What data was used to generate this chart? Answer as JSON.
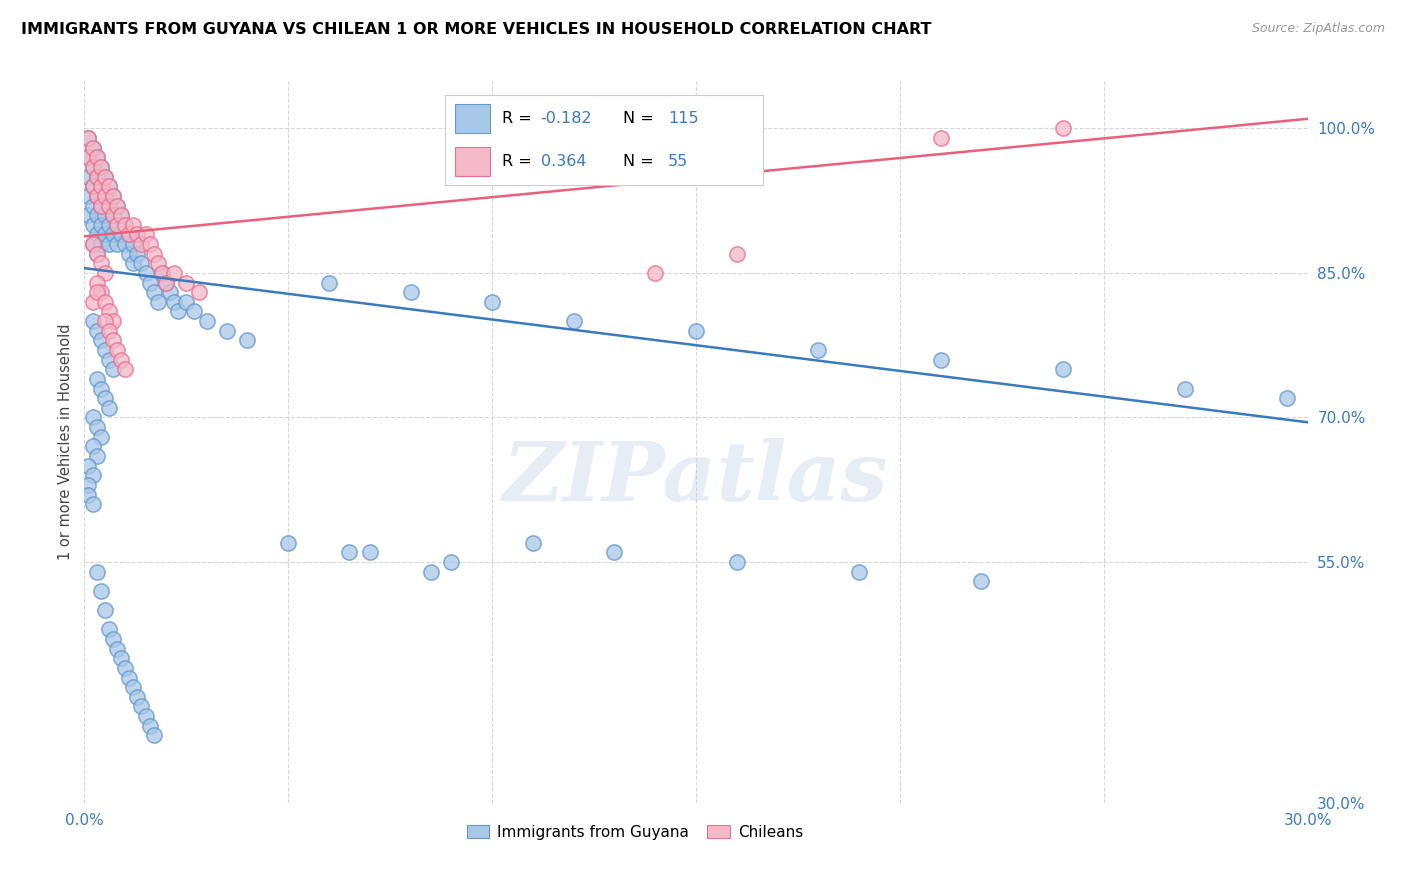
{
  "title": "IMMIGRANTS FROM GUYANA VS CHILEAN 1 OR MORE VEHICLES IN HOUSEHOLD CORRELATION CHART",
  "source": "Source: ZipAtlas.com",
  "ylabel": "1 or more Vehicles in Household",
  "xlim": [
    0.0,
    0.3
  ],
  "ylim": [
    0.3,
    1.05
  ],
  "xticks": [
    0.0,
    0.05,
    0.1,
    0.15,
    0.2,
    0.25,
    0.3
  ],
  "xtick_labels": [
    "0.0%",
    "",
    "",
    "",
    "",
    "",
    "30.0%"
  ],
  "yticks": [
    0.3,
    0.55,
    0.7,
    0.85,
    1.0
  ],
  "ytick_labels": [
    "30.0%",
    "55.0%",
    "70.0%",
    "85.0%",
    "100.0%"
  ],
  "blue_color": "#a8c8e8",
  "blue_edge_color": "#6699cc",
  "pink_color": "#f4b8c8",
  "pink_edge_color": "#e87090",
  "blue_line_color": "#3a7abf",
  "pink_line_color": "#e8607a",
  "watermark": "ZIPatlas",
  "legend_R_blue": "-0.182",
  "legend_N_blue": "115",
  "legend_R_pink": "0.364",
  "legend_N_pink": "55",
  "blue_line_x0": 0.0,
  "blue_line_x1": 0.3,
  "blue_line_y0": 0.855,
  "blue_line_y1": 0.695,
  "pink_line_x0": 0.0,
  "pink_line_x1": 0.3,
  "pink_line_y0": 0.888,
  "pink_line_y1": 1.01,
  "blue_scatter_x": [
    0.001,
    0.001,
    0.001,
    0.001,
    0.001,
    0.002,
    0.002,
    0.002,
    0.002,
    0.002,
    0.002,
    0.003,
    0.003,
    0.003,
    0.003,
    0.003,
    0.003,
    0.004,
    0.004,
    0.004,
    0.004,
    0.004,
    0.005,
    0.005,
    0.005,
    0.005,
    0.006,
    0.006,
    0.006,
    0.006,
    0.007,
    0.007,
    0.007,
    0.008,
    0.008,
    0.008,
    0.009,
    0.009,
    0.01,
    0.01,
    0.011,
    0.011,
    0.012,
    0.012,
    0.013,
    0.014,
    0.015,
    0.016,
    0.017,
    0.018,
    0.019,
    0.02,
    0.021,
    0.022,
    0.023,
    0.025,
    0.027,
    0.03,
    0.035,
    0.04,
    0.002,
    0.003,
    0.004,
    0.005,
    0.006,
    0.007,
    0.003,
    0.004,
    0.005,
    0.006,
    0.002,
    0.003,
    0.004,
    0.002,
    0.003,
    0.001,
    0.002,
    0.001,
    0.001,
    0.002,
    0.06,
    0.08,
    0.1,
    0.12,
    0.15,
    0.18,
    0.21,
    0.24,
    0.27,
    0.295,
    0.05,
    0.07,
    0.09,
    0.11,
    0.065,
    0.085,
    0.13,
    0.16,
    0.19,
    0.22,
    0.003,
    0.004,
    0.005,
    0.006,
    0.007,
    0.008,
    0.009,
    0.01,
    0.011,
    0.012,
    0.013,
    0.014,
    0.015,
    0.016,
    0.017
  ],
  "blue_scatter_y": [
    0.99,
    0.97,
    0.95,
    0.93,
    0.91,
    0.98,
    0.96,
    0.94,
    0.92,
    0.9,
    0.88,
    0.97,
    0.95,
    0.93,
    0.91,
    0.89,
    0.87,
    0.96,
    0.94,
    0.92,
    0.9,
    0.88,
    0.95,
    0.93,
    0.91,
    0.89,
    0.94,
    0.92,
    0.9,
    0.88,
    0.93,
    0.91,
    0.89,
    0.92,
    0.9,
    0.88,
    0.91,
    0.89,
    0.9,
    0.88,
    0.89,
    0.87,
    0.88,
    0.86,
    0.87,
    0.86,
    0.85,
    0.84,
    0.83,
    0.82,
    0.85,
    0.84,
    0.83,
    0.82,
    0.81,
    0.82,
    0.81,
    0.8,
    0.79,
    0.78,
    0.8,
    0.79,
    0.78,
    0.77,
    0.76,
    0.75,
    0.74,
    0.73,
    0.72,
    0.71,
    0.7,
    0.69,
    0.68,
    0.67,
    0.66,
    0.65,
    0.64,
    0.63,
    0.62,
    0.61,
    0.84,
    0.83,
    0.82,
    0.8,
    0.79,
    0.77,
    0.76,
    0.75,
    0.73,
    0.72,
    0.57,
    0.56,
    0.55,
    0.57,
    0.56,
    0.54,
    0.56,
    0.55,
    0.54,
    0.53,
    0.54,
    0.52,
    0.5,
    0.48,
    0.47,
    0.46,
    0.45,
    0.44,
    0.43,
    0.42,
    0.41,
    0.4,
    0.39,
    0.38,
    0.37
  ],
  "pink_scatter_x": [
    0.001,
    0.001,
    0.002,
    0.002,
    0.002,
    0.003,
    0.003,
    0.003,
    0.004,
    0.004,
    0.004,
    0.005,
    0.005,
    0.006,
    0.006,
    0.007,
    0.007,
    0.008,
    0.008,
    0.009,
    0.01,
    0.011,
    0.012,
    0.013,
    0.014,
    0.015,
    0.016,
    0.017,
    0.018,
    0.019,
    0.02,
    0.022,
    0.025,
    0.028,
    0.002,
    0.003,
    0.004,
    0.005,
    0.003,
    0.004,
    0.002,
    0.003,
    0.005,
    0.006,
    0.007,
    0.14,
    0.16,
    0.21,
    0.24,
    0.005,
    0.006,
    0.007,
    0.008,
    0.009,
    0.01
  ],
  "pink_scatter_y": [
    0.99,
    0.97,
    0.98,
    0.96,
    0.94,
    0.97,
    0.95,
    0.93,
    0.96,
    0.94,
    0.92,
    0.95,
    0.93,
    0.94,
    0.92,
    0.93,
    0.91,
    0.92,
    0.9,
    0.91,
    0.9,
    0.89,
    0.9,
    0.89,
    0.88,
    0.89,
    0.88,
    0.87,
    0.86,
    0.85,
    0.84,
    0.85,
    0.84,
    0.83,
    0.88,
    0.87,
    0.86,
    0.85,
    0.84,
    0.83,
    0.82,
    0.83,
    0.82,
    0.81,
    0.8,
    0.85,
    0.87,
    0.99,
    1.0,
    0.8,
    0.79,
    0.78,
    0.77,
    0.76,
    0.75
  ]
}
